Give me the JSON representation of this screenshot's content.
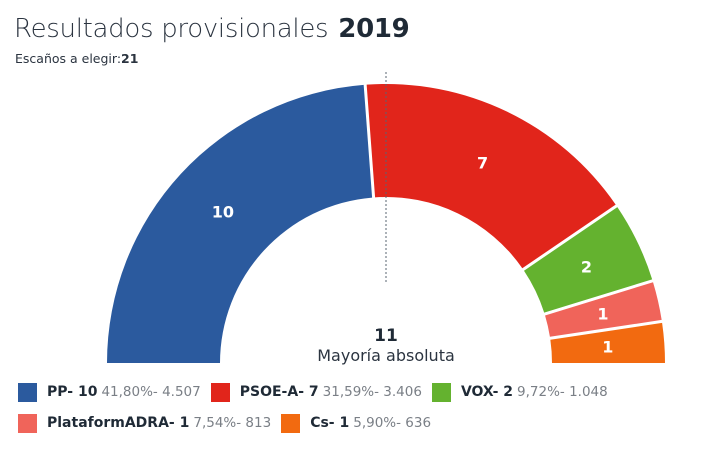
{
  "header": {
    "title": "Resultados provisionales",
    "year": "2019",
    "seats_label": "Escaños a elegir:",
    "seats_total": "21"
  },
  "majority": {
    "value": "11",
    "label": "Mayoría absoluta"
  },
  "chart_data": {
    "type": "pie",
    "subtype": "parliament-semicircle",
    "title": "Resultados provisionales 2019",
    "total_seats": 21,
    "majority_seats": 11,
    "series": [
      {
        "name": "PP",
        "seats": 10,
        "percent": "41,80%",
        "votes": "4.507",
        "color": "#2b5a9e"
      },
      {
        "name": "PSOE-A",
        "seats": 7,
        "percent": "31,59%",
        "votes": "3.406",
        "color": "#e1251b"
      },
      {
        "name": "VOX",
        "seats": 2,
        "percent": "9,72%",
        "votes": "1.048",
        "color": "#64b22f"
      },
      {
        "name": "PlataformADRA",
        "seats": 1,
        "percent": "7,54%",
        "votes": "813",
        "color": "#f0645a"
      },
      {
        "name": "Cs",
        "seats": 1,
        "percent": "5,90%",
        "votes": "636",
        "color": "#f26a10"
      }
    ],
    "legend_position": "bottom"
  },
  "legend": {
    "rows": [
      [
        {
          "label": "PP- 10",
          "stat": "41,80%- 4.507",
          "color": "#2b5a9e"
        },
        {
          "label": "PSOE-A- 7",
          "stat": "31,59%- 3.406",
          "color": "#e1251b"
        },
        {
          "label": "VOX- 2",
          "stat": "9,72%- 1.048",
          "color": "#64b22f"
        }
      ],
      [
        {
          "label": "PlataformADRA- 1",
          "stat": "7,54%- 813",
          "color": "#f0645a"
        },
        {
          "label": "Cs- 1",
          "stat": "5,90%- 636",
          "color": "#f26a10"
        }
      ]
    ]
  }
}
